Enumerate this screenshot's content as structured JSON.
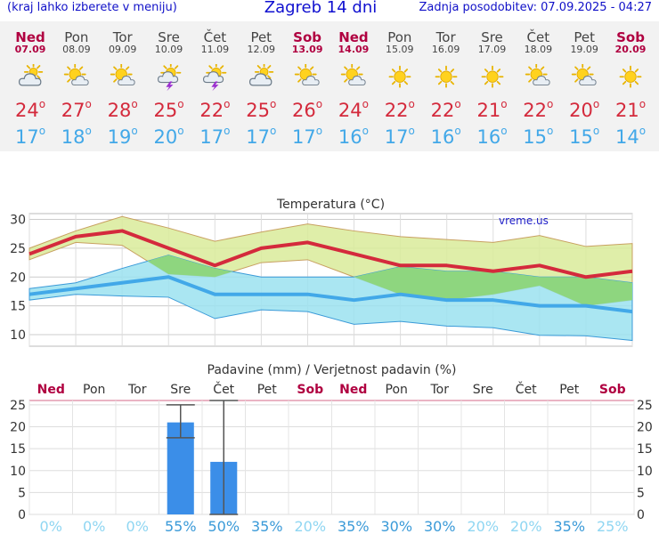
{
  "header": {
    "left_note": "(kraj lahko izberete v meniju)",
    "title": "Zagreb 14 dni",
    "updated": "Zadnja posodobitev: 07.09.2025 - 04:27"
  },
  "colors": {
    "weekend": "#b00040",
    "max": "#d42a3c",
    "min": "#42a8e8",
    "max_band": "#d9eb9a",
    "min_band": "#9be2f0",
    "overlap": "#8ed67f",
    "precip_bar": "#3b8ee8",
    "prob_low": "#8fd6f2",
    "prob_high": "#3a9ad8"
  },
  "days": [
    {
      "name": "Ned",
      "date": "07.09",
      "weekend": true,
      "icon": "cloudy-sun-icon",
      "max": "24",
      "min": "17"
    },
    {
      "name": "Pon",
      "date": "08.09",
      "weekend": false,
      "icon": "sun-cloud-icon",
      "max": "27",
      "min": "18"
    },
    {
      "name": "Tor",
      "date": "09.09",
      "weekend": false,
      "icon": "sun-cloud-icon",
      "max": "28",
      "min": "19"
    },
    {
      "name": "Sre",
      "date": "10.09",
      "weekend": false,
      "icon": "thunderstorm-icon",
      "max": "25",
      "min": "20"
    },
    {
      "name": "Čet",
      "date": "11.09",
      "weekend": false,
      "icon": "thunderstorm-icon",
      "max": "22",
      "min": "17"
    },
    {
      "name": "Pet",
      "date": "12.09",
      "weekend": false,
      "icon": "cloudy-sun-icon",
      "max": "25",
      "min": "17"
    },
    {
      "name": "Sob",
      "date": "13.09",
      "weekend": true,
      "icon": "sun-cloud-icon",
      "max": "26",
      "min": "17"
    },
    {
      "name": "Ned",
      "date": "14.09",
      "weekend": true,
      "icon": "sun-cloud-icon",
      "max": "24",
      "min": "16"
    },
    {
      "name": "Pon",
      "date": "15.09",
      "weekend": false,
      "icon": "sun-icon",
      "max": "22",
      "min": "17"
    },
    {
      "name": "Tor",
      "date": "16.09",
      "weekend": false,
      "icon": "sun-icon",
      "max": "22",
      "min": "16"
    },
    {
      "name": "Sre",
      "date": "17.09",
      "weekend": false,
      "icon": "sun-icon",
      "max": "21",
      "min": "16"
    },
    {
      "name": "Čet",
      "date": "18.09",
      "weekend": false,
      "icon": "sun-cloud-icon",
      "max": "22",
      "min": "15"
    },
    {
      "name": "Pet",
      "date": "19.09",
      "weekend": false,
      "icon": "sun-cloud-icon",
      "max": "20",
      "min": "15"
    },
    {
      "name": "Sob",
      "date": "20.09",
      "weekend": true,
      "icon": "sun-icon",
      "max": "21",
      "min": "14"
    }
  ],
  "chart_data": [
    {
      "type": "line",
      "title": "Temperatura (°C)",
      "watermark": "vreme.us",
      "ylim": [
        8,
        31
      ],
      "yticks": [
        10,
        15,
        20,
        25,
        30
      ],
      "grid": true,
      "x": [
        1,
        2,
        3,
        4,
        5,
        6,
        7,
        8,
        9,
        10,
        11,
        12,
        13,
        14
      ],
      "series": [
        {
          "role": "max",
          "values": [
            24,
            27,
            28,
            25,
            22,
            25,
            26,
            24,
            22,
            22,
            21,
            22,
            20,
            21
          ],
          "upper": [
            25,
            28,
            30.5,
            28.5,
            26.2,
            27.8,
            29.2,
            28,
            27,
            26.5,
            26,
            27.2,
            25.3,
            25.8
          ],
          "lower": [
            23,
            26,
            25.5,
            20.5,
            20,
            22.5,
            23,
            20,
            17,
            16,
            17,
            18.5,
            15,
            16
          ]
        },
        {
          "role": "min",
          "values": [
            17,
            18,
            19,
            20,
            17,
            17,
            17,
            16,
            17,
            16,
            16,
            15,
            15,
            14
          ],
          "upper": [
            18,
            19,
            21.5,
            23.8,
            21.5,
            20,
            20,
            20,
            21.8,
            21,
            21,
            20,
            20,
            19
          ],
          "lower": [
            16,
            17,
            16.7,
            16.5,
            12.8,
            14.3,
            14,
            11.8,
            12.3,
            11.5,
            11.2,
            9.9,
            9.8,
            9
          ]
        }
      ]
    },
    {
      "type": "bar",
      "title": "Padavine (mm) / Verjetnost padavin (%)",
      "categories": [
        "Ned",
        "Pon",
        "Tor",
        "Sre",
        "Čet",
        "Pet",
        "Sob",
        "Ned",
        "Pon",
        "Tor",
        "Sre",
        "Čet",
        "Pet",
        "Sob"
      ],
      "ylim": [
        0,
        26
      ],
      "yticks": [
        0,
        5,
        10,
        15,
        20,
        25
      ],
      "values": [
        0,
        0,
        0,
        21,
        12,
        0,
        0,
        0,
        0,
        0,
        0,
        0,
        0,
        0
      ],
      "error_low": [
        0,
        0,
        0,
        17.5,
        0,
        0,
        0,
        0,
        0,
        0,
        0,
        0,
        0,
        0
      ],
      "error_high": [
        0,
        0,
        0,
        25,
        26,
        0,
        0,
        0,
        0,
        0,
        0,
        0,
        0,
        0
      ],
      "probability": [
        "0%",
        "0%",
        "0%",
        "55%",
        "50%",
        "35%",
        "20%",
        "35%",
        "30%",
        "30%",
        "20%",
        "20%",
        "35%",
        "25%"
      ]
    }
  ]
}
